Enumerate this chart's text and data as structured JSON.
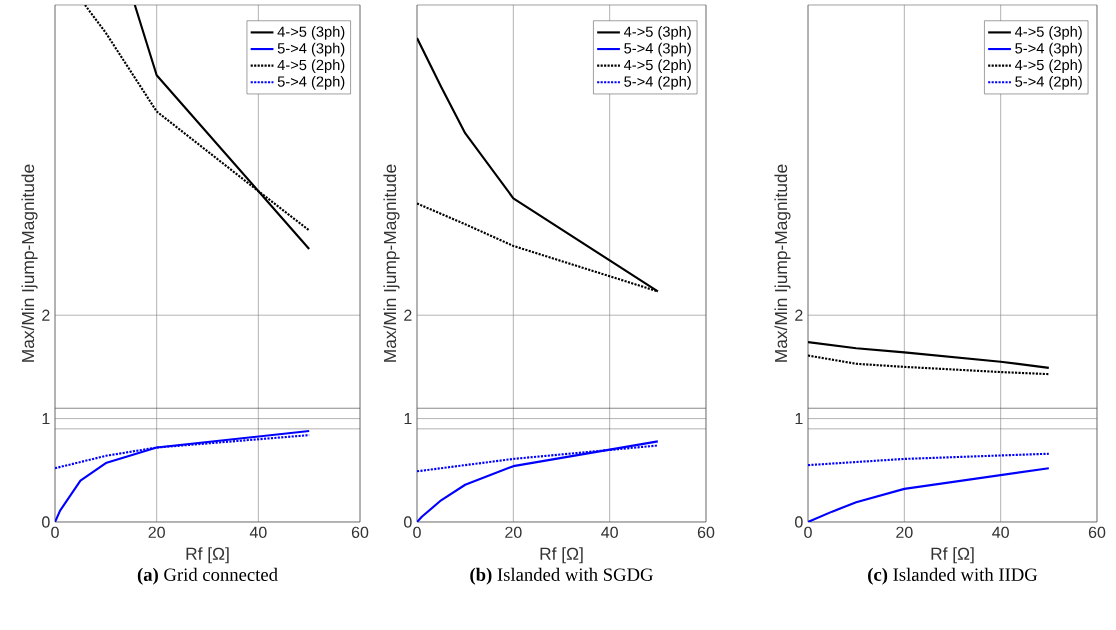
{
  "chart_data": [
    {
      "type": "line",
      "title": "**(a)** Grid connected",
      "xlabel": "Rf [Ω]",
      "ylabel": "Max/Min Ijump-Magnitude",
      "xlim": [
        0,
        60
      ],
      "xticks": [
        0,
        20,
        40,
        60
      ],
      "ylim": [
        0,
        5
      ],
      "yticks": [
        0,
        1,
        2
      ],
      "grid": true,
      "legend": "top right",
      "ref_lines": [
        {
          "axis": "y",
          "value": 0.9
        },
        {
          "axis": "y",
          "value": 1.1
        }
      ],
      "series": [
        {
          "name": "4->5 (3ph)",
          "color": "#000000",
          "line_style": "solid",
          "x": [
            15.7,
            20,
            50
          ],
          "values": [
            5.0,
            4.32,
            2.64
          ]
        },
        {
          "name": "5->4 (3ph)",
          "color": "#0000ff",
          "line_style": "solid",
          "x": [
            0,
            1,
            5,
            10,
            20,
            50
          ],
          "values": [
            0,
            0.11,
            0.4,
            0.57,
            0.72,
            0.88
          ]
        },
        {
          "name": "4->5 (2ph)",
          "color": "#000000",
          "line_style": "dotted",
          "x": [
            5.9,
            10,
            20,
            40,
            50
          ],
          "values": [
            5.0,
            4.73,
            3.97,
            3.2,
            2.82
          ]
        },
        {
          "name": "5->4 (2ph)",
          "color": "#0000ff",
          "line_style": "dotted",
          "x": [
            0,
            10,
            20,
            50
          ],
          "values": [
            0.52,
            0.64,
            0.72,
            0.84
          ]
        }
      ]
    },
    {
      "type": "line",
      "title": "**(b)** Islanded with SGDG",
      "xlabel": "Rf [Ω]",
      "ylabel": "Max/Min Ijump-Magnitude",
      "xlim": [
        0,
        60
      ],
      "xticks": [
        0,
        20,
        40,
        60
      ],
      "ylim": [
        0,
        5
      ],
      "yticks": [
        0,
        1,
        2
      ],
      "grid": true,
      "legend": "top right",
      "ref_lines": [
        {
          "axis": "y",
          "value": 0.9
        },
        {
          "axis": "y",
          "value": 1.1
        }
      ],
      "series": [
        {
          "name": "4->5 (3ph)",
          "color": "#000000",
          "line_style": "solid",
          "x": [
            0,
            5,
            10,
            20,
            50
          ],
          "values": [
            4.68,
            4.21,
            3.76,
            3.13,
            2.23
          ]
        },
        {
          "name": "5->4 (3ph)",
          "color": "#0000ff",
          "line_style": "solid",
          "x": [
            0,
            1,
            5,
            10,
            20,
            50
          ],
          "values": [
            0,
            0.05,
            0.21,
            0.36,
            0.54,
            0.78
          ]
        },
        {
          "name": "4->5 (2ph)",
          "color": "#000000",
          "line_style": "dotted",
          "x": [
            0,
            10,
            20,
            50
          ],
          "values": [
            3.08,
            2.88,
            2.67,
            2.23
          ]
        },
        {
          "name": "5->4 (2ph)",
          "color": "#0000ff",
          "line_style": "dotted",
          "x": [
            0,
            20,
            50
          ],
          "values": [
            0.49,
            0.61,
            0.74
          ]
        }
      ]
    },
    {
      "type": "line",
      "title": "**(c)** Islanded with IIDG",
      "xlabel": "Rf [Ω]",
      "ylabel": "Max/Min Ijump-Magnitude",
      "xlim": [
        0,
        60
      ],
      "xticks": [
        0,
        20,
        40,
        60
      ],
      "ylim": [
        0,
        5
      ],
      "yticks": [
        0,
        1,
        2
      ],
      "grid": true,
      "legend": "top right",
      "ref_lines": [
        {
          "axis": "y",
          "value": 0.9
        },
        {
          "axis": "y",
          "value": 1.1
        }
      ],
      "series": [
        {
          "name": "4->5 (3ph)",
          "color": "#000000",
          "line_style": "solid",
          "x": [
            0,
            10,
            20,
            40,
            50
          ],
          "values": [
            1.74,
            1.68,
            1.64,
            1.55,
            1.49
          ]
        },
        {
          "name": "5->4 (3ph)",
          "color": "#0000ff",
          "line_style": "solid",
          "x": [
            0,
            5,
            10,
            20,
            50
          ],
          "values": [
            0,
            0.1,
            0.19,
            0.32,
            0.52
          ]
        },
        {
          "name": "4->5 (2ph)",
          "color": "#000000",
          "line_style": "dotted",
          "x": [
            0,
            10,
            20,
            40,
            50
          ],
          "values": [
            1.61,
            1.53,
            1.5,
            1.45,
            1.43
          ]
        },
        {
          "name": "5->4 (2ph)",
          "color": "#0000ff",
          "line_style": "dotted",
          "x": [
            0,
            20,
            50
          ],
          "values": [
            0.55,
            0.61,
            0.66
          ]
        }
      ]
    }
  ]
}
